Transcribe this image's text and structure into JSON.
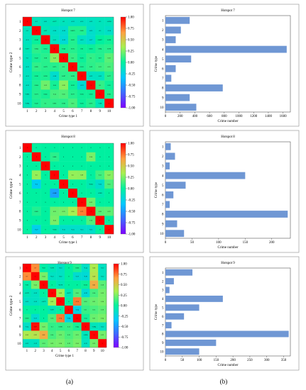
{
  "chart_data": [
    {
      "type": "heatmap",
      "title": "Hotspot 7",
      "xlabel": "Crime type 1",
      "ylabel": "Crime type 2",
      "categories": [
        "1",
        "2",
        "3",
        "4",
        "5",
        "6",
        "7",
        "8",
        "9",
        "10"
      ],
      "colorbar": {
        "range": [
          -1,
          1
        ],
        "ticks": [
          "1.00",
          "0.75",
          "0.50",
          "0.25",
          "0.00",
          "-0.25",
          "-0.50",
          "-0.75",
          "-1.00"
        ]
      },
      "values": [
        [
          1,
          -0.1,
          -0.11,
          -0.077,
          -0.1,
          -0.12,
          -0.11,
          -0.12,
          -0.1,
          -0.094
        ],
        [
          -0.1,
          1,
          -0.07,
          -0.14,
          -0.16,
          0.0625,
          0.065,
          -0.15,
          -0.1,
          -0.14
        ],
        [
          -0.11,
          0.016,
          1,
          -0.11,
          -0.19,
          0.062,
          -0.12,
          -0.17,
          0.0007,
          0.028
        ],
        [
          -0.077,
          0.084,
          0.052,
          1,
          0.046,
          0.075,
          0.03,
          0.023,
          0.064,
          0.078
        ],
        [
          -0.1,
          0.047,
          0.08,
          0.28,
          1,
          0.11,
          0.025,
          0.1,
          0.07,
          0.18
        ],
        [
          -0.12,
          0.095,
          0.079,
          0.075,
          0.11,
          1,
          0.052,
          0.09,
          0.12,
          0.15
        ],
        [
          -0.11,
          0.036,
          0.058,
          -0.16,
          0.087,
          0.098,
          1,
          -0.12,
          -0.11,
          0.077
        ],
        [
          -0.12,
          0.064,
          0.22,
          0.04,
          0.28,
          0.032,
          -0.19,
          1,
          0.1,
          0.03
        ],
        [
          -0.085,
          0.071,
          0.045,
          0.14,
          0.16,
          0.077,
          0.035,
          0.032,
          1,
          0.062
        ],
        [
          -0.094,
          0.047,
          0.1,
          0.095,
          0.083,
          0.15,
          0.025,
          0.071,
          -0.08,
          1
        ]
      ]
    },
    {
      "type": "bar",
      "orientation": "horizontal",
      "title": "Hotspot 7",
      "xlabel": "Crime number",
      "ylabel": "Crime type",
      "categories": [
        "1",
        "2",
        "3",
        "4",
        "5",
        "6",
        "7",
        "8",
        "9",
        "10"
      ],
      "values": [
        330,
        210,
        140,
        1650,
        350,
        140,
        80,
        780,
        330,
        420
      ],
      "xlim": [
        0,
        1700
      ],
      "xticks": [
        0,
        200,
        400,
        600,
        800,
        1000,
        1200,
        1400,
        1600
      ],
      "color": "#6f97d4"
    },
    {
      "type": "heatmap",
      "title": "Hotspot 8",
      "xlabel": "Crime type 1",
      "ylabel": "Crime type 2",
      "categories": [
        "1",
        "2",
        "3",
        "4",
        "5",
        "6",
        "7",
        "8",
        "9",
        "10"
      ],
      "colorbar": {
        "range": [
          -1,
          1
        ],
        "ticks": [
          "1.00",
          "0.75",
          "0.50",
          "0.25",
          "0.00",
          "-0.25",
          "-0.50",
          "-0.75",
          "-1.00"
        ]
      },
      "values": [
        [
          1,
          0,
          0,
          0,
          0,
          0,
          0,
          0,
          0,
          0
        ],
        [
          0,
          1,
          0,
          0.086,
          0,
          0,
          0,
          0.24,
          0,
          0
        ],
        [
          0,
          0,
          1,
          0,
          0,
          0,
          0,
          0,
          0,
          0
        ],
        [
          0,
          0.3,
          0,
          1,
          0,
          0.3,
          0.29,
          0,
          0.13,
          0.27
        ],
        [
          0,
          -0.3,
          0,
          0,
          1,
          0,
          0,
          -0.063,
          -0.15,
          0.15
        ],
        [
          0,
          0,
          0,
          -0.466,
          0,
          1,
          0,
          0,
          -0.063,
          0
        ],
        [
          0,
          0,
          0,
          0,
          0,
          0,
          1,
          0.22,
          0,
          0
        ],
        [
          0,
          0.065,
          0,
          0.22,
          0.23,
          0.34,
          0.73,
          1,
          0.18,
          0.19
        ],
        [
          0,
          0,
          0,
          0.24,
          0,
          0,
          0,
          0.16,
          1,
          0
        ],
        [
          0,
          -0.27,
          0,
          -0.063,
          -0.15,
          -0.15,
          -0.15,
          -0.15,
          0,
          1
        ]
      ]
    },
    {
      "type": "bar",
      "orientation": "horizontal",
      "title": "Hotspot 8",
      "xlabel": "Crime number",
      "ylabel": "Crime type",
      "categories": [
        "1",
        "2",
        "3",
        "4",
        "5",
        "6",
        "7",
        "8",
        "9",
        "10"
      ],
      "values": [
        10,
        18,
        8,
        150,
        38,
        15,
        8,
        230,
        22,
        35
      ],
      "xlim": [
        0,
        235
      ],
      "xticks": [
        0,
        50,
        100,
        150,
        200
      ],
      "color": "#6f97d4"
    },
    {
      "type": "heatmap",
      "title": "Hotspot 9",
      "xlabel": "Crime type 1",
      "ylabel": "Crime type 2",
      "categories": [
        "1",
        "2",
        "3",
        "4",
        "5",
        "6",
        "7",
        "8",
        "9",
        "10"
      ],
      "colorbar": {
        "range": [
          -1,
          1
        ],
        "ticks": [
          "1.00",
          "0.75",
          "0.50",
          "0.25",
          "0.00",
          "-0.25",
          "-0.50",
          "-0.75",
          "-1.00"
        ]
      },
      "values": [
        [
          1,
          0.7,
          -0.02,
          -0.079,
          -0.13,
          0,
          0.058,
          -0.14,
          0.36,
          -0.12
        ],
        [
          0.7,
          1,
          0.24,
          -0.12,
          -0.12,
          0,
          -0.17,
          -0.19,
          0.39,
          -0.12
        ],
        [
          -0.02,
          0.24,
          1,
          0,
          -0.079,
          0,
          0,
          0.023,
          0.61,
          0.18
        ],
        [
          -0.079,
          -0.12,
          0,
          1,
          0.32,
          -0.077,
          0.16,
          -0.19,
          0.14,
          0.23
        ],
        [
          -0.13,
          -0.12,
          -0.079,
          0.32,
          1,
          0,
          0.74,
          0.16,
          0.21,
          0.24
        ],
        [
          0,
          0,
          0,
          -0.077,
          0,
          1,
          -0.24,
          0.11,
          0.15,
          0.19
        ],
        [
          0.058,
          -0.17,
          0,
          0.16,
          0.74,
          -0.24,
          1,
          0.04,
          0.21,
          0.24
        ],
        [
          -0.14,
          0.97,
          0.23,
          0.1,
          0.098,
          0.11,
          0.044,
          1,
          -0.094,
          -0.12
        ],
        [
          0.36,
          0.39,
          0.61,
          0.14,
          0.21,
          0.15,
          0.21,
          -0.094,
          1,
          0.23
        ],
        [
          -0.12,
          -0.12,
          0.18,
          0.23,
          0.24,
          0.19,
          0.24,
          -0.12,
          0.23,
          1
        ]
      ]
    },
    {
      "type": "bar",
      "orientation": "horizontal",
      "title": "Hotspot 9",
      "xlabel": "Crime number",
      "ylabel": "Crime type",
      "categories": [
        "1",
        "2",
        "3",
        "4",
        "5",
        "6",
        "7",
        "8",
        "9",
        "10"
      ],
      "values": [
        80,
        25,
        12,
        170,
        100,
        55,
        18,
        365,
        150,
        100
      ],
      "xlim": [
        0,
        370
      ],
      "xticks": [
        0,
        50,
        100,
        150,
        200,
        250,
        300,
        350
      ],
      "color": "#6f97d4"
    }
  ],
  "labels": {
    "left": "(a)",
    "right": "(b)"
  }
}
